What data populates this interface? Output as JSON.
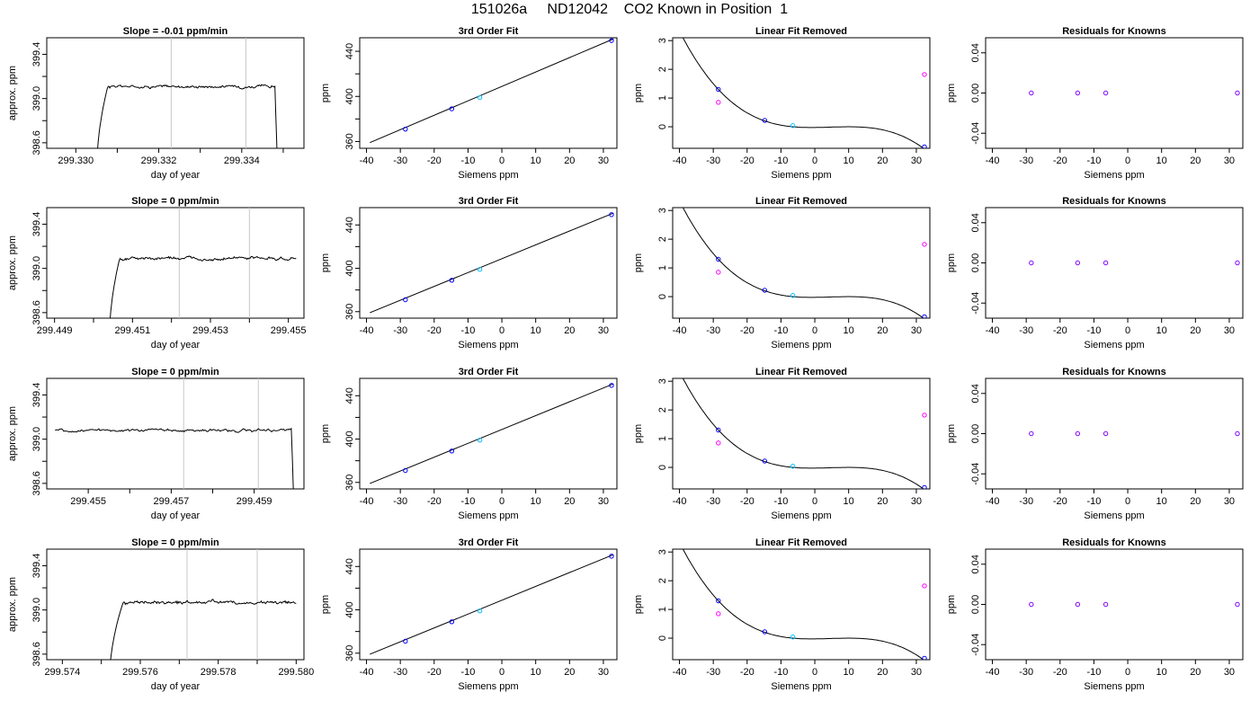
{
  "figure_title": "151026a     ND12042    CO2 Known in Position  1",
  "colors": {
    "trace": "#000000",
    "vline": "#c8c8c8",
    "blue": "#0000ff",
    "cyan": "#00bfff",
    "magenta": "#ff00ff",
    "purple": "#8000ff",
    "red": "#ff0000"
  },
  "chart_data": [
    {
      "type": "line",
      "row": 0,
      "title": "Slope =  -0.01  ppm/min",
      "xlabel": "day of year",
      "ylabel": "approx. ppm",
      "xlim": [
        299.3293,
        299.3355
      ],
      "ylim": [
        398.55,
        399.55
      ],
      "xticks": [
        299.33,
        299.331,
        299.332,
        299.333,
        299.334,
        299.335
      ],
      "xtick_labels": [
        "299.330",
        "",
        "299.332",
        "",
        "299.334",
        ""
      ],
      "yticks": [
        398.6,
        398.8,
        399.0,
        399.2,
        399.4
      ],
      "ytick_labels": [
        "398.6",
        "",
        "399.0",
        "",
        "399.4"
      ],
      "vlines": [
        299.3323,
        299.3341
      ],
      "series": {
        "start": 299.3305,
        "end": 299.3349,
        "onset": 299.3305,
        "rise_end": 299.3308,
        "plateau": 399.11,
        "drop_x": 299.3348,
        "amp": 0.014
      }
    },
    {
      "type": "scatter",
      "row": 0,
      "title": "3rd Order Fit",
      "xlabel": "Siemens ppm",
      "ylabel": "ppm",
      "xlim": [
        -42,
        34
      ],
      "ylim": [
        354,
        452
      ],
      "xticks": [
        -40,
        -30,
        -20,
        -10,
        0,
        10,
        20,
        30
      ],
      "yticks": [
        360,
        380,
        400,
        420,
        440
      ],
      "ytick_labels": [
        "360",
        "",
        "400",
        "",
        "440"
      ],
      "fit_line": [
        [
          -39,
          359
        ],
        [
          33,
          451
        ]
      ],
      "points": [
        {
          "x": -28.5,
          "y": 371,
          "color": "blue"
        },
        {
          "x": -14.8,
          "y": 389,
          "color": "blue"
        },
        {
          "x": -6.5,
          "y": 399,
          "color": "cyan"
        },
        {
          "x": 32.4,
          "y": 449.5,
          "color": "blue"
        }
      ]
    },
    {
      "type": "scatter",
      "row": 0,
      "title": "Linear Fit Removed",
      "xlabel": "Siemens ppm",
      "ylabel": "ppm",
      "xlim": [
        -42,
        34
      ],
      "ylim": [
        -0.75,
        3.1
      ],
      "xticks": [
        -40,
        -30,
        -20,
        -10,
        0,
        10,
        20,
        30
      ],
      "yticks": [
        0,
        1,
        2,
        3
      ],
      "curve_roots": [
        -6.5,
        10.0
      ],
      "curve_at_minus28": 1.3,
      "points": [
        {
          "x": -28.5,
          "y": 1.3,
          "color": "blue"
        },
        {
          "x": -28.5,
          "y": 0.85,
          "color": "magenta"
        },
        {
          "x": -14.8,
          "y": 0.22,
          "color": "blue"
        },
        {
          "x": -6.5,
          "y": 0.04,
          "color": "cyan"
        },
        {
          "x": 32.4,
          "y": 1.82,
          "color": "magenta"
        },
        {
          "x": 32.4,
          "y": -0.7,
          "color": "blue"
        }
      ]
    },
    {
      "type": "scatter",
      "row": 0,
      "title": "Residuals for Knowns",
      "xlabel": "Siemens ppm",
      "ylabel": "ppm",
      "xlim": [
        -42,
        34
      ],
      "ylim": [
        -0.055,
        0.055
      ],
      "xticks": [
        -40,
        -30,
        -20,
        -10,
        0,
        10,
        20,
        30
      ],
      "yticks": [
        -0.04,
        0.0,
        0.04
      ],
      "ytick_labels": [
        "-0.04",
        "0.00",
        "0.04"
      ],
      "points": [
        {
          "x": -28.5,
          "y": 0,
          "color": "purple"
        },
        {
          "x": -14.8,
          "y": 0,
          "color": "purple"
        },
        {
          "x": -6.5,
          "y": 0,
          "color": "purple"
        },
        {
          "x": 32.4,
          "y": 0,
          "color": "purple"
        }
      ]
    },
    {
      "type": "line",
      "row": 1,
      "title": "Slope =  0  ppm/min",
      "xlabel": "day of year",
      "ylabel": "approx. ppm",
      "xlim": [
        299.4488,
        299.4554
      ],
      "ylim": [
        398.55,
        399.55
      ],
      "xticks": [
        299.449,
        299.45,
        299.451,
        299.452,
        299.453,
        299.454,
        299.455
      ],
      "xtick_labels": [
        "299.449",
        "",
        "299.451",
        "",
        "299.453",
        "",
        "299.455"
      ],
      "yticks": [
        398.6,
        398.8,
        399.0,
        399.2,
        399.4
      ],
      "ytick_labels": [
        "398.6",
        "",
        "399.0",
        "",
        "399.4"
      ],
      "vlines": [
        299.4522,
        299.454
      ],
      "series": {
        "start": 299.4504,
        "end": 299.4552,
        "onset": 299.4504,
        "rise_end": 299.4507,
        "plateau": 399.09,
        "drop_x": null,
        "amp": 0.014
      }
    },
    {
      "type": "scatter",
      "row": 1,
      "title": "3rd Order Fit",
      "xlabel": "Siemens ppm",
      "ylabel": "ppm",
      "xlim": [
        -42,
        34
      ],
      "ylim": [
        354,
        456
      ],
      "xticks": [
        -40,
        -30,
        -20,
        -10,
        0,
        10,
        20,
        30
      ],
      "yticks": [
        360,
        380,
        400,
        420,
        440
      ],
      "ytick_labels": [
        "360",
        "",
        "400",
        "",
        "440"
      ],
      "fit_line": [
        [
          -39,
          359
        ],
        [
          33,
          451
        ]
      ],
      "points": [
        {
          "x": -28.5,
          "y": 371,
          "color": "blue"
        },
        {
          "x": -14.8,
          "y": 389,
          "color": "blue"
        },
        {
          "x": -6.5,
          "y": 399,
          "color": "cyan"
        },
        {
          "x": 32.4,
          "y": 449.5,
          "color": "blue"
        }
      ]
    },
    {
      "type": "scatter",
      "row": 1,
      "title": "Linear Fit Removed",
      "xlabel": "Siemens ppm",
      "ylabel": "ppm",
      "xlim": [
        -42,
        34
      ],
      "ylim": [
        -0.75,
        3.1
      ],
      "xticks": [
        -40,
        -30,
        -20,
        -10,
        0,
        10,
        20,
        30
      ],
      "yticks": [
        0,
        1,
        2,
        3
      ],
      "curve_roots": [
        -6.5,
        10.0
      ],
      "curve_at_minus28": 1.3,
      "points": [
        {
          "x": -28.5,
          "y": 1.3,
          "color": "blue"
        },
        {
          "x": -28.5,
          "y": 0.85,
          "color": "magenta"
        },
        {
          "x": -14.8,
          "y": 0.22,
          "color": "blue"
        },
        {
          "x": -6.5,
          "y": 0.04,
          "color": "cyan"
        },
        {
          "x": 32.4,
          "y": 1.82,
          "color": "magenta"
        },
        {
          "x": 32.4,
          "y": -0.7,
          "color": "blue"
        }
      ]
    },
    {
      "type": "scatter",
      "row": 1,
      "title": "Residuals for Knowns",
      "xlabel": "Siemens ppm",
      "ylabel": "ppm",
      "xlim": [
        -42,
        34
      ],
      "ylim": [
        -0.055,
        0.055
      ],
      "xticks": [
        -40,
        -30,
        -20,
        -10,
        0,
        10,
        20,
        30
      ],
      "yticks": [
        -0.04,
        0.0,
        0.04
      ],
      "ytick_labels": [
        "-0.04",
        "0.00",
        "0.04"
      ],
      "points": [
        {
          "x": -28.5,
          "y": 0,
          "color": "purple"
        },
        {
          "x": -14.8,
          "y": 0,
          "color": "purple"
        },
        {
          "x": -6.5,
          "y": 0,
          "color": "purple"
        },
        {
          "x": 32.4,
          "y": 0,
          "color": "purple"
        }
      ]
    },
    {
      "type": "line",
      "row": 2,
      "title": "Slope =  0  ppm/min",
      "xlabel": "day of year",
      "ylabel": "approx. ppm",
      "xlim": [
        299.454,
        299.4602
      ],
      "ylim": [
        398.55,
        399.55
      ],
      "xticks": [
        299.455,
        299.456,
        299.457,
        299.458,
        299.459
      ],
      "xtick_labels": [
        "299.455",
        "",
        "299.457",
        "",
        "299.459"
      ],
      "yticks": [
        398.6,
        398.8,
        399.0,
        399.2,
        399.4
      ],
      "ytick_labels": [
        "398.6",
        "",
        "399.0",
        "",
        "399.4"
      ],
      "vlines": [
        299.4573,
        299.4591
      ],
      "series": {
        "start": 299.4542,
        "end": 299.46,
        "onset": null,
        "rise_end": null,
        "plateau": 399.08,
        "drop_x": 299.4599,
        "amp": 0.014
      }
    },
    {
      "type": "scatter",
      "row": 2,
      "title": "3rd Order Fit",
      "xlabel": "Siemens ppm",
      "ylabel": "ppm",
      "xlim": [
        -42,
        34
      ],
      "ylim": [
        354,
        456
      ],
      "xticks": [
        -40,
        -30,
        -20,
        -10,
        0,
        10,
        20,
        30
      ],
      "yticks": [
        360,
        380,
        400,
        420,
        440
      ],
      "ytick_labels": [
        "360",
        "",
        "400",
        "",
        "440"
      ],
      "fit_line": [
        [
          -39,
          359
        ],
        [
          33,
          451
        ]
      ],
      "points": [
        {
          "x": -28.5,
          "y": 371,
          "color": "blue"
        },
        {
          "x": -14.8,
          "y": 389,
          "color": "blue"
        },
        {
          "x": -6.5,
          "y": 399,
          "color": "cyan"
        },
        {
          "x": 32.4,
          "y": 449.5,
          "color": "blue"
        }
      ]
    },
    {
      "type": "scatter",
      "row": 2,
      "title": "Linear Fit Removed",
      "xlabel": "Siemens ppm",
      "ylabel": "ppm",
      "xlim": [
        -42,
        34
      ],
      "ylim": [
        -0.75,
        3.1
      ],
      "xticks": [
        -40,
        -30,
        -20,
        -10,
        0,
        10,
        20,
        30
      ],
      "yticks": [
        0,
        1,
        2,
        3
      ],
      "curve_roots": [
        -6.5,
        10.0
      ],
      "curve_at_minus28": 1.3,
      "points": [
        {
          "x": -28.5,
          "y": 1.3,
          "color": "blue"
        },
        {
          "x": -28.5,
          "y": 0.85,
          "color": "magenta"
        },
        {
          "x": -14.8,
          "y": 0.22,
          "color": "blue"
        },
        {
          "x": -6.5,
          "y": 0.04,
          "color": "cyan"
        },
        {
          "x": 32.4,
          "y": 1.82,
          "color": "magenta"
        },
        {
          "x": 32.4,
          "y": -0.7,
          "color": "blue"
        }
      ]
    },
    {
      "type": "scatter",
      "row": 2,
      "title": "Residuals for Knowns",
      "xlabel": "Siemens ppm",
      "ylabel": "ppm",
      "xlim": [
        -42,
        34
      ],
      "ylim": [
        -0.055,
        0.055
      ],
      "xticks": [
        -40,
        -30,
        -20,
        -10,
        0,
        10,
        20,
        30
      ],
      "yticks": [
        -0.04,
        0.0,
        0.04
      ],
      "ytick_labels": [
        "-0.04",
        "0.00",
        "0.04"
      ],
      "points": [
        {
          "x": -28.5,
          "y": 0,
          "color": "purple"
        },
        {
          "x": -14.8,
          "y": 0,
          "color": "purple"
        },
        {
          "x": -6.5,
          "y": 0,
          "color": "purple"
        },
        {
          "x": 32.4,
          "y": 0,
          "color": "purple"
        }
      ]
    },
    {
      "type": "line",
      "row": 3,
      "title": "Slope =  0  ppm/min",
      "xlabel": "day of year",
      "ylabel": "approx. ppm",
      "xlim": [
        299.5736,
        299.5802
      ],
      "ylim": [
        398.55,
        399.55
      ],
      "xticks": [
        299.574,
        299.575,
        299.576,
        299.577,
        299.578,
        299.579,
        299.58
      ],
      "xtick_labels": [
        "299.574",
        "",
        "299.576",
        "",
        "299.578",
        "",
        "299.580"
      ],
      "yticks": [
        398.6,
        398.8,
        399.0,
        399.2,
        399.4
      ],
      "ytick_labels": [
        "398.6",
        "",
        "399.0",
        "",
        "399.4"
      ],
      "vlines": [
        299.5772,
        299.579
      ],
      "series": {
        "start": 299.5752,
        "end": 299.58,
        "onset": 299.5752,
        "rise_end": 299.5756,
        "plateau": 399.07,
        "drop_x": null,
        "amp": 0.016
      }
    },
    {
      "type": "scatter",
      "row": 3,
      "title": "3rd Order Fit",
      "xlabel": "Siemens ppm",
      "ylabel": "ppm",
      "xlim": [
        -42,
        34
      ],
      "ylim": [
        354,
        456
      ],
      "xticks": [
        -40,
        -30,
        -20,
        -10,
        0,
        10,
        20,
        30
      ],
      "yticks": [
        360,
        380,
        400,
        420,
        440
      ],
      "ytick_labels": [
        "360",
        "",
        "400",
        "",
        "440"
      ],
      "fit_line": [
        [
          -39,
          359
        ],
        [
          33,
          451
        ]
      ],
      "points": [
        {
          "x": -28.5,
          "y": 371,
          "color": "blue"
        },
        {
          "x": -14.8,
          "y": 389,
          "color": "blue"
        },
        {
          "x": -6.5,
          "y": 399,
          "color": "cyan"
        },
        {
          "x": 32.4,
          "y": 449.5,
          "color": "blue"
        }
      ]
    },
    {
      "type": "scatter",
      "row": 3,
      "title": "Linear Fit Removed",
      "xlabel": "Siemens ppm",
      "ylabel": "ppm",
      "xlim": [
        -42,
        34
      ],
      "ylim": [
        -0.75,
        3.1
      ],
      "xticks": [
        -40,
        -30,
        -20,
        -10,
        0,
        10,
        20,
        30
      ],
      "yticks": [
        0,
        1,
        2,
        3
      ],
      "curve_roots": [
        -6.5,
        10.0
      ],
      "curve_at_minus28": 1.3,
      "points": [
        {
          "x": -28.5,
          "y": 1.3,
          "color": "blue"
        },
        {
          "x": -28.5,
          "y": 0.85,
          "color": "magenta"
        },
        {
          "x": -14.8,
          "y": 0.22,
          "color": "blue"
        },
        {
          "x": -6.5,
          "y": 0.04,
          "color": "cyan"
        },
        {
          "x": 32.4,
          "y": 1.82,
          "color": "magenta"
        },
        {
          "x": 32.4,
          "y": -0.7,
          "color": "blue"
        }
      ]
    },
    {
      "type": "scatter",
      "row": 3,
      "title": "Residuals for Knowns",
      "xlabel": "Siemens ppm",
      "ylabel": "ppm",
      "xlim": [
        -42,
        34
      ],
      "ylim": [
        -0.055,
        0.055
      ],
      "xticks": [
        -40,
        -30,
        -20,
        -10,
        0,
        10,
        20,
        30
      ],
      "yticks": [
        -0.04,
        0.0,
        0.04
      ],
      "ytick_labels": [
        "-0.04",
        "0.00",
        "0.04"
      ],
      "points": [
        {
          "x": -28.5,
          "y": 0,
          "color": "purple"
        },
        {
          "x": -14.8,
          "y": 0,
          "color": "purple"
        },
        {
          "x": -6.5,
          "y": 0,
          "color": "purple"
        },
        {
          "x": 32.4,
          "y": 0,
          "color": "purple"
        }
      ]
    }
  ]
}
